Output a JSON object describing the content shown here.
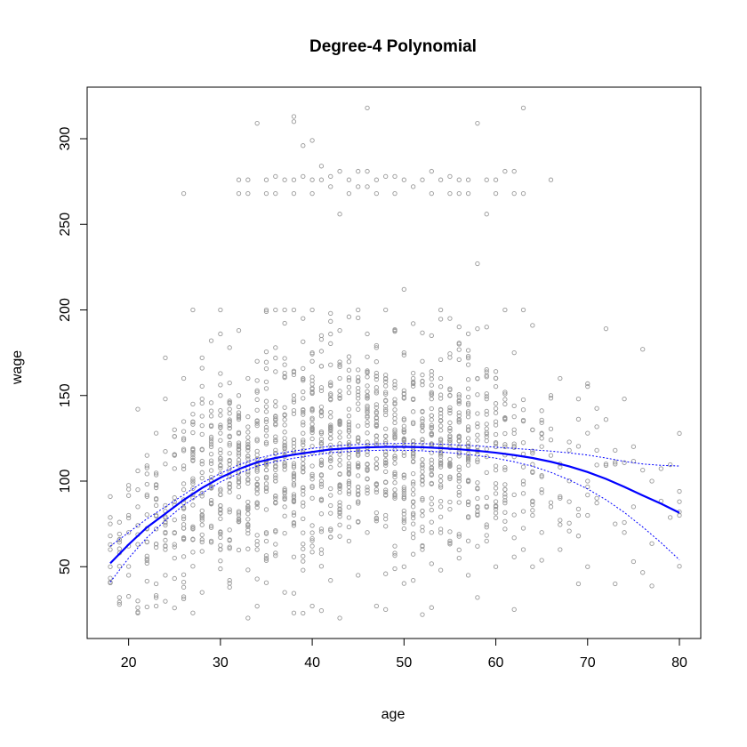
{
  "chart_data": {
    "type": "scatter",
    "title": "Degree-4 Polynomial",
    "xlabel": "age",
    "ylabel": "wage",
    "xlim": [
      18,
      80
    ],
    "ylim": [
      20,
      318
    ],
    "x_ticks": [
      20,
      30,
      40,
      50,
      60,
      70,
      80
    ],
    "y_ticks": [
      50,
      100,
      150,
      200,
      250,
      300
    ],
    "grid": false,
    "legend": "none",
    "colors": {
      "points": "#999999",
      "fit": "#0000ff",
      "band": "#0000ff",
      "frame": "#000000"
    },
    "point_clusters": [
      {
        "age_min": 18,
        "age_max": 80,
        "wage_center": 100,
        "wage_spread": 40
      }
    ],
    "scatter_points": [
      {
        "x": 18,
        "y": 75
      },
      {
        "x": 18,
        "y": 68
      },
      {
        "x": 18,
        "y": 60
      },
      {
        "x": 18,
        "y": 50
      },
      {
        "x": 18,
        "y": 41
      },
      {
        "x": 19,
        "y": 76
      },
      {
        "x": 19,
        "y": 66
      },
      {
        "x": 19,
        "y": 58
      },
      {
        "x": 19,
        "y": 32
      },
      {
        "x": 19,
        "y": 28
      },
      {
        "x": 20,
        "y": 80
      },
      {
        "x": 20,
        "y": 70
      },
      {
        "x": 20,
        "y": 62
      },
      {
        "x": 20,
        "y": 45
      },
      {
        "x": 21,
        "y": 142
      },
      {
        "x": 21,
        "y": 106
      },
      {
        "x": 21,
        "y": 95
      },
      {
        "x": 21,
        "y": 85
      },
      {
        "x": 21,
        "y": 30
      },
      {
        "x": 22,
        "y": 115
      },
      {
        "x": 22,
        "y": 92
      },
      {
        "x": 22,
        "y": 72
      },
      {
        "x": 22,
        "y": 52
      },
      {
        "x": 23,
        "y": 128
      },
      {
        "x": 23,
        "y": 98
      },
      {
        "x": 23,
        "y": 80
      },
      {
        "x": 23,
        "y": 40
      },
      {
        "x": 23,
        "y": 27
      },
      {
        "x": 24,
        "y": 172
      },
      {
        "x": 24,
        "y": 148
      },
      {
        "x": 24,
        "y": 110
      },
      {
        "x": 24,
        "y": 60
      },
      {
        "x": 24,
        "y": 45
      },
      {
        "x": 25,
        "y": 130
      },
      {
        "x": 25,
        "y": 115
      },
      {
        "x": 25,
        "y": 88
      },
      {
        "x": 25,
        "y": 55
      },
      {
        "x": 26,
        "y": 268
      },
      {
        "x": 26,
        "y": 160
      },
      {
        "x": 26,
        "y": 125
      },
      {
        "x": 26,
        "y": 95
      },
      {
        "x": 26,
        "y": 38
      },
      {
        "x": 27,
        "y": 200
      },
      {
        "x": 27,
        "y": 145
      },
      {
        "x": 27,
        "y": 118
      },
      {
        "x": 27,
        "y": 72
      },
      {
        "x": 27,
        "y": 23
      },
      {
        "x": 28,
        "y": 172
      },
      {
        "x": 28,
        "y": 148
      },
      {
        "x": 28,
        "y": 110
      },
      {
        "x": 28,
        "y": 80
      },
      {
        "x": 28,
        "y": 35
      },
      {
        "x": 29,
        "y": 182
      },
      {
        "x": 29,
        "y": 138
      },
      {
        "x": 29,
        "y": 100
      },
      {
        "x": 29,
        "y": 65
      },
      {
        "x": 30,
        "y": 200
      },
      {
        "x": 30,
        "y": 186
      },
      {
        "x": 30,
        "y": 150
      },
      {
        "x": 30,
        "y": 128
      },
      {
        "x": 30,
        "y": 92
      },
      {
        "x": 30,
        "y": 60
      },
      {
        "x": 31,
        "y": 178
      },
      {
        "x": 31,
        "y": 142
      },
      {
        "x": 31,
        "y": 105
      },
      {
        "x": 31,
        "y": 42
      },
      {
        "x": 31,
        "y": 38
      },
      {
        "x": 32,
        "y": 276
      },
      {
        "x": 32,
        "y": 268
      },
      {
        "x": 32,
        "y": 188
      },
      {
        "x": 32,
        "y": 150
      },
      {
        "x": 32,
        "y": 115
      },
      {
        "x": 32,
        "y": 78
      },
      {
        "x": 33,
        "y": 276
      },
      {
        "x": 33,
        "y": 268
      },
      {
        "x": 33,
        "y": 160
      },
      {
        "x": 33,
        "y": 120
      },
      {
        "x": 33,
        "y": 85
      },
      {
        "x": 33,
        "y": 20
      },
      {
        "x": 34,
        "y": 309
      },
      {
        "x": 34,
        "y": 170
      },
      {
        "x": 34,
        "y": 135
      },
      {
        "x": 34,
        "y": 98
      },
      {
        "x": 34,
        "y": 60
      },
      {
        "x": 35,
        "y": 276
      },
      {
        "x": 35,
        "y": 268
      },
      {
        "x": 35,
        "y": 200
      },
      {
        "x": 35,
        "y": 158
      },
      {
        "x": 35,
        "y": 110
      },
      {
        "x": 35,
        "y": 70
      },
      {
        "x": 36,
        "y": 278
      },
      {
        "x": 36,
        "y": 268
      },
      {
        "x": 36,
        "y": 200
      },
      {
        "x": 36,
        "y": 178
      },
      {
        "x": 36,
        "y": 138
      },
      {
        "x": 36,
        "y": 100
      },
      {
        "x": 36,
        "y": 58
      },
      {
        "x": 37,
        "y": 276
      },
      {
        "x": 37,
        "y": 200
      },
      {
        "x": 37,
        "y": 168
      },
      {
        "x": 37,
        "y": 125
      },
      {
        "x": 37,
        "y": 85
      },
      {
        "x": 37,
        "y": 35
      },
      {
        "x": 38,
        "y": 313
      },
      {
        "x": 38,
        "y": 310
      },
      {
        "x": 38,
        "y": 276
      },
      {
        "x": 38,
        "y": 268
      },
      {
        "x": 38,
        "y": 200
      },
      {
        "x": 38,
        "y": 150
      },
      {
        "x": 38,
        "y": 108
      },
      {
        "x": 38,
        "y": 23
      },
      {
        "x": 39,
        "y": 296
      },
      {
        "x": 39,
        "y": 278
      },
      {
        "x": 39,
        "y": 195
      },
      {
        "x": 39,
        "y": 160
      },
      {
        "x": 39,
        "y": 118
      },
      {
        "x": 39,
        "y": 78
      },
      {
        "x": 39,
        "y": 48
      },
      {
        "x": 40,
        "y": 299
      },
      {
        "x": 40,
        "y": 276
      },
      {
        "x": 40,
        "y": 268
      },
      {
        "x": 40,
        "y": 200
      },
      {
        "x": 40,
        "y": 170
      },
      {
        "x": 40,
        "y": 130
      },
      {
        "x": 40,
        "y": 90
      },
      {
        "x": 40,
        "y": 27
      },
      {
        "x": 41,
        "y": 284
      },
      {
        "x": 41,
        "y": 276
      },
      {
        "x": 41,
        "y": 185
      },
      {
        "x": 41,
        "y": 140
      },
      {
        "x": 41,
        "y": 100
      },
      {
        "x": 41,
        "y": 60
      },
      {
        "x": 42,
        "y": 278
      },
      {
        "x": 42,
        "y": 272
      },
      {
        "x": 42,
        "y": 198
      },
      {
        "x": 42,
        "y": 150
      },
      {
        "x": 42,
        "y": 112
      },
      {
        "x": 42,
        "y": 72
      },
      {
        "x": 42,
        "y": 42
      },
      {
        "x": 43,
        "y": 281
      },
      {
        "x": 43,
        "y": 256
      },
      {
        "x": 43,
        "y": 188
      },
      {
        "x": 43,
        "y": 160
      },
      {
        "x": 43,
        "y": 120
      },
      {
        "x": 43,
        "y": 82
      },
      {
        "x": 43,
        "y": 20
      },
      {
        "x": 44,
        "y": 276
      },
      {
        "x": 44,
        "y": 268
      },
      {
        "x": 44,
        "y": 196
      },
      {
        "x": 44,
        "y": 142
      },
      {
        "x": 44,
        "y": 104
      },
      {
        "x": 44,
        "y": 65
      },
      {
        "x": 45,
        "y": 281
      },
      {
        "x": 45,
        "y": 272
      },
      {
        "x": 45,
        "y": 200
      },
      {
        "x": 45,
        "y": 165
      },
      {
        "x": 45,
        "y": 125
      },
      {
        "x": 45,
        "y": 88
      },
      {
        "x": 45,
        "y": 45
      },
      {
        "x": 46,
        "y": 318
      },
      {
        "x": 46,
        "y": 281
      },
      {
        "x": 46,
        "y": 272
      },
      {
        "x": 46,
        "y": 186
      },
      {
        "x": 46,
        "y": 150
      },
      {
        "x": 46,
        "y": 110
      },
      {
        "x": 46,
        "y": 70
      },
      {
        "x": 47,
        "y": 276
      },
      {
        "x": 47,
        "y": 268
      },
      {
        "x": 47,
        "y": 178
      },
      {
        "x": 47,
        "y": 135
      },
      {
        "x": 47,
        "y": 95
      },
      {
        "x": 47,
        "y": 27
      },
      {
        "x": 48,
        "y": 278
      },
      {
        "x": 48,
        "y": 200
      },
      {
        "x": 48,
        "y": 160
      },
      {
        "x": 48,
        "y": 122
      },
      {
        "x": 48,
        "y": 80
      },
      {
        "x": 48,
        "y": 25
      },
      {
        "x": 49,
        "y": 278
      },
      {
        "x": 49,
        "y": 268
      },
      {
        "x": 49,
        "y": 188
      },
      {
        "x": 49,
        "y": 145
      },
      {
        "x": 49,
        "y": 105
      },
      {
        "x": 49,
        "y": 62
      },
      {
        "x": 50,
        "y": 276
      },
      {
        "x": 50,
        "y": 212
      },
      {
        "x": 50,
        "y": 175
      },
      {
        "x": 50,
        "y": 130
      },
      {
        "x": 50,
        "y": 90
      },
      {
        "x": 50,
        "y": 50
      },
      {
        "x": 51,
        "y": 272
      },
      {
        "x": 51,
        "y": 192
      },
      {
        "x": 51,
        "y": 158
      },
      {
        "x": 51,
        "y": 115
      },
      {
        "x": 51,
        "y": 75
      },
      {
        "x": 51,
        "y": 42
      },
      {
        "x": 52,
        "y": 276
      },
      {
        "x": 52,
        "y": 170
      },
      {
        "x": 52,
        "y": 135
      },
      {
        "x": 52,
        "y": 98
      },
      {
        "x": 52,
        "y": 60
      },
      {
        "x": 52,
        "y": 22
      },
      {
        "x": 53,
        "y": 281
      },
      {
        "x": 53,
        "y": 268
      },
      {
        "x": 53,
        "y": 185
      },
      {
        "x": 53,
        "y": 148
      },
      {
        "x": 53,
        "y": 108
      },
      {
        "x": 53,
        "y": 70
      },
      {
        "x": 54,
        "y": 276
      },
      {
        "x": 54,
        "y": 200
      },
      {
        "x": 54,
        "y": 160
      },
      {
        "x": 54,
        "y": 122
      },
      {
        "x": 54,
        "y": 85
      },
      {
        "x": 54,
        "y": 48
      },
      {
        "x": 55,
        "y": 278
      },
      {
        "x": 55,
        "y": 268
      },
      {
        "x": 55,
        "y": 195
      },
      {
        "x": 55,
        "y": 150
      },
      {
        "x": 55,
        "y": 110
      },
      {
        "x": 55,
        "y": 65
      },
      {
        "x": 56,
        "y": 276
      },
      {
        "x": 56,
        "y": 268
      },
      {
        "x": 56,
        "y": 180
      },
      {
        "x": 56,
        "y": 140
      },
      {
        "x": 56,
        "y": 100
      },
      {
        "x": 56,
        "y": 55
      },
      {
        "x": 57,
        "y": 276
      },
      {
        "x": 57,
        "y": 268
      },
      {
        "x": 57,
        "y": 168
      },
      {
        "x": 57,
        "y": 125
      },
      {
        "x": 57,
        "y": 88
      },
      {
        "x": 57,
        "y": 45
      },
      {
        "x": 58,
        "y": 309
      },
      {
        "x": 58,
        "y": 227
      },
      {
        "x": 58,
        "y": 160
      },
      {
        "x": 58,
        "y": 118
      },
      {
        "x": 58,
        "y": 80
      },
      {
        "x": 58,
        "y": 32
      },
      {
        "x": 59,
        "y": 276
      },
      {
        "x": 59,
        "y": 256
      },
      {
        "x": 59,
        "y": 190
      },
      {
        "x": 59,
        "y": 148
      },
      {
        "x": 59,
        "y": 105
      },
      {
        "x": 59,
        "y": 65
      },
      {
        "x": 60,
        "y": 276
      },
      {
        "x": 60,
        "y": 268
      },
      {
        "x": 60,
        "y": 160
      },
      {
        "x": 60,
        "y": 120
      },
      {
        "x": 60,
        "y": 85
      },
      {
        "x": 60,
        "y": 50
      },
      {
        "x": 61,
        "y": 281
      },
      {
        "x": 61,
        "y": 200
      },
      {
        "x": 61,
        "y": 145
      },
      {
        "x": 61,
        "y": 108
      },
      {
        "x": 61,
        "y": 72
      },
      {
        "x": 62,
        "y": 281
      },
      {
        "x": 62,
        "y": 268
      },
      {
        "x": 62,
        "y": 175
      },
      {
        "x": 62,
        "y": 130
      },
      {
        "x": 62,
        "y": 92
      },
      {
        "x": 62,
        "y": 25
      },
      {
        "x": 63,
        "y": 318
      },
      {
        "x": 63,
        "y": 268
      },
      {
        "x": 63,
        "y": 200
      },
      {
        "x": 63,
        "y": 135
      },
      {
        "x": 63,
        "y": 100
      },
      {
        "x": 63,
        "y": 60
      },
      {
        "x": 64,
        "y": 130
      },
      {
        "x": 64,
        "y": 105
      },
      {
        "x": 64,
        "y": 80
      },
      {
        "x": 64,
        "y": 50
      },
      {
        "x": 65,
        "y": 125
      },
      {
        "x": 65,
        "y": 95
      },
      {
        "x": 65,
        "y": 70
      },
      {
        "x": 66,
        "y": 276
      },
      {
        "x": 66,
        "y": 150
      },
      {
        "x": 66,
        "y": 115
      },
      {
        "x": 66,
        "y": 85
      },
      {
        "x": 67,
        "y": 160
      },
      {
        "x": 67,
        "y": 110
      },
      {
        "x": 67,
        "y": 90
      },
      {
        "x": 67,
        "y": 60
      },
      {
        "x": 68,
        "y": 118
      },
      {
        "x": 68,
        "y": 88
      },
      {
        "x": 69,
        "y": 148
      },
      {
        "x": 69,
        "y": 80
      },
      {
        "x": 69,
        "y": 40
      },
      {
        "x": 70,
        "y": 128
      },
      {
        "x": 70,
        "y": 100
      },
      {
        "x": 70,
        "y": 80
      },
      {
        "x": 70,
        "y": 50
      },
      {
        "x": 71,
        "y": 118
      },
      {
        "x": 71,
        "y": 90
      },
      {
        "x": 72,
        "y": 189
      },
      {
        "x": 72,
        "y": 110
      },
      {
        "x": 73,
        "y": 118
      },
      {
        "x": 73,
        "y": 75
      },
      {
        "x": 73,
        "y": 40
      },
      {
        "x": 74,
        "y": 148
      },
      {
        "x": 74,
        "y": 70
      },
      {
        "x": 75,
        "y": 85
      },
      {
        "x": 75,
        "y": 53
      },
      {
        "x": 76,
        "y": 177
      },
      {
        "x": 77,
        "y": 100
      },
      {
        "x": 80,
        "y": 94
      },
      {
        "x": 80,
        "y": 88
      },
      {
        "x": 80,
        "y": 82
      },
      {
        "x": 80,
        "y": 80
      }
    ],
    "series": [
      {
        "kind": "fit",
        "style": "solid",
        "x": [
          18,
          20,
          22,
          24,
          26,
          28,
          30,
          32,
          34,
          36,
          38,
          40,
          42,
          44,
          46,
          48,
          50,
          52,
          54,
          56,
          58,
          60,
          62,
          64,
          66,
          68,
          70,
          72,
          74,
          76,
          78,
          80
        ],
        "y": [
          52,
          63,
          73,
          81,
          89,
          96,
          102,
          107,
          111,
          113.5,
          115.5,
          117,
          118.5,
          119.2,
          119.7,
          120,
          120,
          119.8,
          119.3,
          118.6,
          117.7,
          116.6,
          115.2,
          113.5,
          111.3,
          108.6,
          105.3,
          101.3,
          96.6,
          91.6,
          86.8,
          81.5
        ]
      },
      {
        "kind": "band-upper",
        "style": "dotted",
        "x": [
          18,
          20,
          22,
          24,
          26,
          28,
          30,
          32,
          34,
          36,
          38,
          40,
          42,
          44,
          46,
          48,
          50,
          52,
          54,
          56,
          58,
          60,
          62,
          64,
          66,
          68,
          70,
          72,
          74,
          76,
          78,
          80
        ],
        "y": [
          62,
          70,
          78,
          85,
          92,
          99,
          104.5,
          109.5,
          113.2,
          115.7,
          117.6,
          119.1,
          120.4,
          121.1,
          121.6,
          121.9,
          122,
          121.9,
          121.6,
          121.1,
          120.5,
          119.8,
          119.1,
          118.3,
          117.5,
          116.5,
          115.2,
          113.5,
          111.5,
          110,
          109.2,
          108.8
        ]
      },
      {
        "kind": "band-lower",
        "style": "dotted",
        "x": [
          18,
          20,
          22,
          24,
          26,
          28,
          30,
          32,
          34,
          36,
          38,
          40,
          42,
          44,
          46,
          48,
          50,
          52,
          54,
          56,
          58,
          60,
          62,
          64,
          66,
          68,
          70,
          72,
          74,
          76,
          78,
          80
        ],
        "y": [
          41,
          55,
          67,
          77,
          86,
          93,
          99.5,
          104.5,
          108.8,
          111.4,
          113.4,
          115,
          116.6,
          117.3,
          117.8,
          118.1,
          118,
          117.7,
          117,
          116.1,
          114.9,
          113.4,
          111.3,
          108.7,
          105.1,
          100.7,
          95.4,
          89.1,
          81.7,
          73.2,
          64,
          54
        ]
      }
    ]
  }
}
